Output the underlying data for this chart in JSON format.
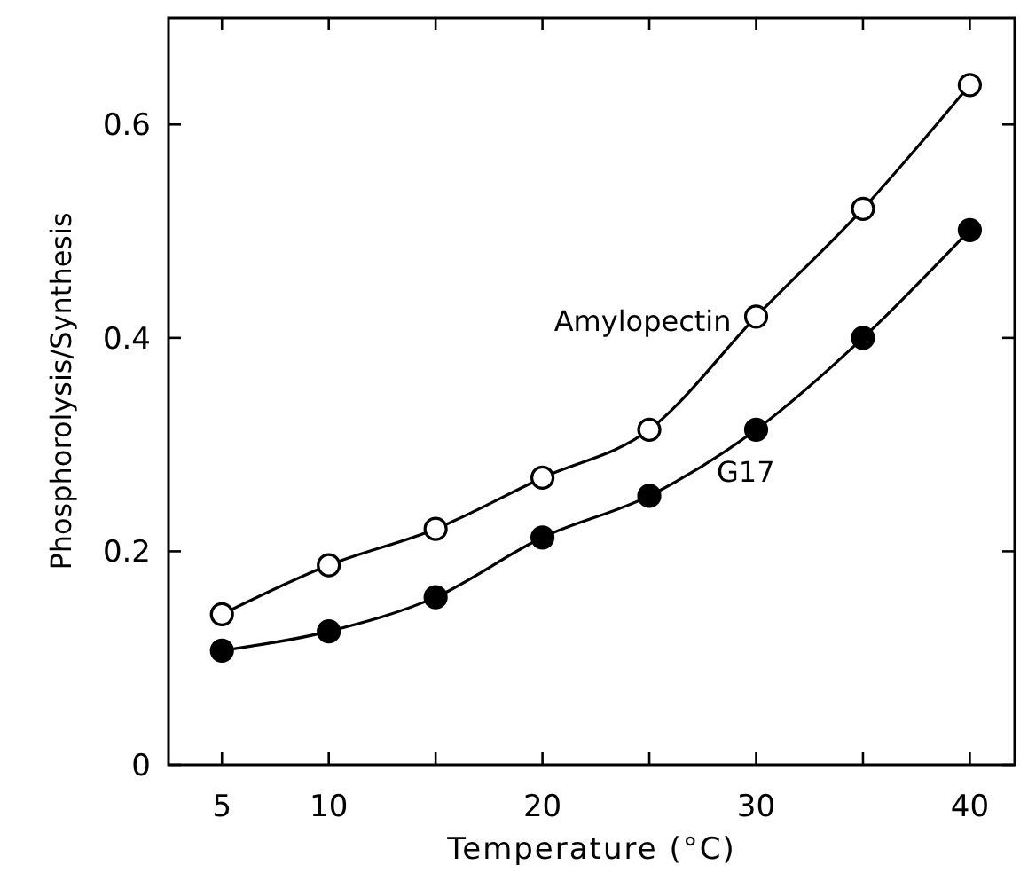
{
  "chart_data": {
    "type": "line",
    "xlabel": "Temperature  (°C)",
    "ylabel": "Phosphorolysis/Synthesis",
    "x": [
      5,
      10,
      15,
      20,
      25,
      30,
      35,
      40
    ],
    "series": [
      {
        "name": "Amylopectin",
        "color": "#000000",
        "values": [
          0.141,
          0.187,
          0.221,
          0.269,
          0.314,
          0.42,
          0.521,
          0.637
        ]
      },
      {
        "name": "G17",
        "color": "#000000",
        "values": [
          0.107,
          0.125,
          0.157,
          0.213,
          0.252,
          0.314,
          0.4,
          0.501
        ]
      }
    ],
    "xlim": [
      2.5,
      42.1
    ],
    "xticks": [
      5,
      10,
      {
        "value": 15,
        "label": null
      },
      20,
      {
        "value": 25,
        "label": null
      },
      30,
      {
        "value": 35,
        "label": null
      },
      40
    ],
    "ylim": [
      0,
      0.7
    ],
    "yticks": [
      0,
      0.2,
      0.4,
      0.6
    ],
    "marker": "circle",
    "line_style": "solid",
    "grid": false,
    "legend": false
  }
}
